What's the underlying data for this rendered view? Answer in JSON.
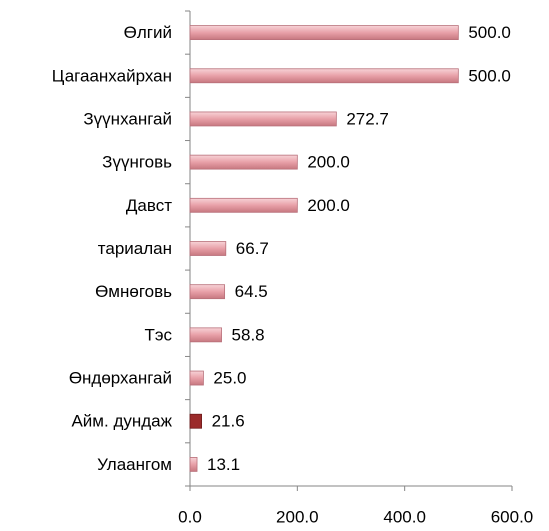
{
  "chart_data": {
    "type": "bar",
    "orientation": "horizontal",
    "categories": [
      "Өлгий",
      "Цагаанхайрхан",
      "Зүүнхангай",
      "Зүүнговь",
      "Давст",
      "тариалан",
      "Өмнөговь",
      "Тэс",
      "Өндөрхангай",
      "Айм. дундаж",
      "Улаангом"
    ],
    "values": [
      500,
      500,
      272.7,
      200,
      200,
      66.7,
      64.5,
      58.8,
      25,
      21.6,
      13.1
    ],
    "value_labels": [
      "500.0",
      "500.0",
      "272.7",
      "200.0",
      "200.0",
      "66.7",
      "64.5",
      "58.8",
      "25.0",
      "21.6",
      "13.1"
    ],
    "colors": [
      "#e9a7ae",
      "#e9a7ae",
      "#e9a7ae",
      "#e9a7ae",
      "#e9a7ae",
      "#e9a7ae",
      "#e9a7ae",
      "#e9a7ae",
      "#e9a7ae",
      "#9b2b2b",
      "#e9a7ae"
    ],
    "xlim": [
      0,
      600
    ],
    "xticks": [
      {
        "value": 0,
        "label": "0.0"
      },
      {
        "value": 200,
        "label": "200.0"
      },
      {
        "value": 400,
        "label": "400.0"
      },
      {
        "value": 600,
        "label": "600.0"
      }
    ]
  }
}
